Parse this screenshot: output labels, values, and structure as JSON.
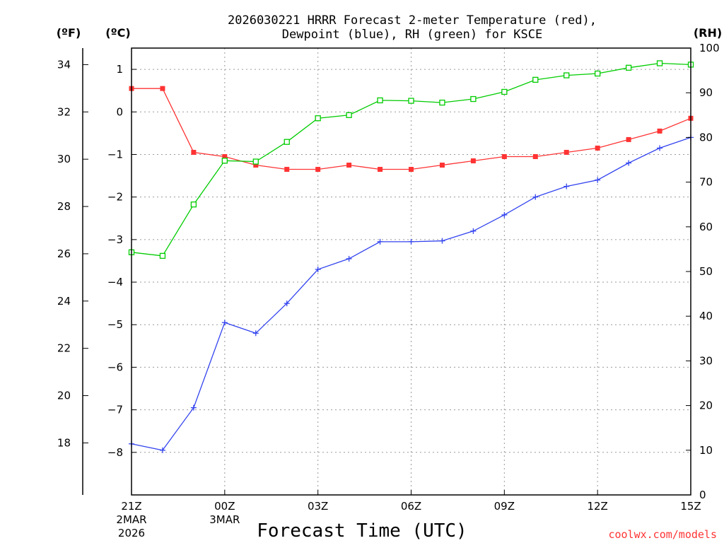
{
  "chart_data": {
    "type": "line",
    "title": {
      "line1": "2026030221 HRRR Forecast 2-meter Temperature (red),",
      "line2": "Dewpoint (blue), RH (green) for KSCE"
    },
    "xlabel": "Forecast Time (UTC)",
    "credit": "coolwx.com/models",
    "units": {
      "f": "(ºF)",
      "c": "(ºC)",
      "rh": "(RH)"
    },
    "x": [
      0,
      1,
      2,
      3,
      4,
      5,
      6,
      7,
      8,
      9,
      10,
      11,
      12,
      13,
      14,
      15,
      16,
      17,
      18
    ],
    "xlim": [
      0,
      18
    ],
    "x_ticks": [
      {
        "x": 0,
        "label": "21Z",
        "sub1": "2MAR",
        "sub2": "2026"
      },
      {
        "x": 3,
        "label": "00Z",
        "sub1": "3MAR",
        "sub2": ""
      },
      {
        "x": 6,
        "label": "03Z",
        "sub1": "",
        "sub2": ""
      },
      {
        "x": 9,
        "label": "06Z",
        "sub1": "",
        "sub2": ""
      },
      {
        "x": 12,
        "label": "09Z",
        "sub1": "",
        "sub2": ""
      },
      {
        "x": 15,
        "label": "12Z",
        "sub1": "",
        "sub2": ""
      },
      {
        "x": 18,
        "label": "15Z",
        "sub1": "",
        "sub2": ""
      }
    ],
    "axes": {
      "c": {
        "lim": [
          -9.0,
          1.5
        ],
        "ticks": [
          "1",
          "0",
          "−1",
          "−2",
          "−3",
          "−4",
          "−5",
          "−6",
          "−7",
          "−8"
        ],
        "tick_values": [
          1,
          0,
          -1,
          -2,
          -3,
          -4,
          -5,
          -6,
          -7,
          -8
        ]
      },
      "f": {
        "ticks": [
          "34",
          "32",
          "30",
          "28",
          "26",
          "24",
          "22",
          "20",
          "18"
        ],
        "tick_values": [
          34,
          32,
          30,
          28,
          26,
          24,
          22,
          20,
          18
        ]
      },
      "rh": {
        "lim": [
          0,
          100
        ],
        "ticks": [
          "100",
          "90",
          "80",
          "70",
          "60",
          "50",
          "40",
          "30",
          "20",
          "10",
          "0"
        ],
        "tick_values": [
          100,
          90,
          80,
          70,
          60,
          50,
          40,
          30,
          20,
          10,
          0
        ]
      }
    },
    "series": [
      {
        "name": "Temperature",
        "axis": "c",
        "color": "#ff3333",
        "marker": "filled-square",
        "values": [
          0.55,
          0.55,
          -0.95,
          -1.05,
          -1.25,
          -1.35,
          -1.35,
          -1.25,
          -1.35,
          -1.35,
          -1.25,
          -1.15,
          -1.05,
          -1.05,
          -0.95,
          -0.85,
          -0.65,
          -0.45,
          -0.15
        ]
      },
      {
        "name": "Dewpoint",
        "axis": "c",
        "color": "#3344ee",
        "marker": "plus",
        "values": [
          -7.8,
          -7.95,
          -6.95,
          -4.95,
          -5.2,
          -4.5,
          -3.7,
          -3.45,
          -3.05,
          -3.05,
          -3.03,
          -2.8,
          -2.42,
          -2.0,
          -1.75,
          -1.6,
          -1.2,
          -0.85,
          -0.6
        ]
      },
      {
        "name": "RH",
        "axis": "rh",
        "color": "#00cc00",
        "marker": "open-square",
        "values": [
          54.3,
          53.5,
          65,
          74.8,
          74.6,
          79,
          84.3,
          85,
          88.3,
          88.2,
          87.8,
          88.6,
          90.2,
          92.9,
          93.9,
          94.3,
          95.6,
          96.6,
          96.3
        ]
      }
    ]
  }
}
